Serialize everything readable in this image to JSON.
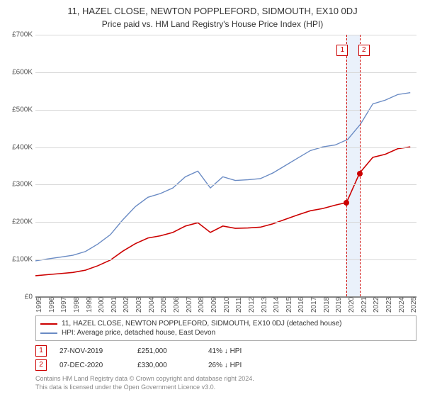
{
  "title": "11, HAZEL CLOSE, NEWTON POPPLEFORD, SIDMOUTH, EX10 0DJ",
  "subtitle": "Price paid vs. HM Land Registry's House Price Index (HPI)",
  "chart": {
    "background_color": "#ffffff",
    "grid_color": "#d8d8d8",
    "axis_color": "#888888",
    "text_color": "#555555",
    "y_min": 0,
    "y_max": 700000,
    "y_tick_step": 100000,
    "y_ticks": [
      "£0",
      "£100K",
      "£200K",
      "£300K",
      "£400K",
      "£500K",
      "£600K",
      "£700K"
    ],
    "x_min": 1995,
    "x_max": 2025.5,
    "x_ticks": [
      1995,
      1996,
      1997,
      1998,
      1999,
      2000,
      2001,
      2002,
      2003,
      2004,
      2005,
      2006,
      2007,
      2008,
      2009,
      2010,
      2011,
      2012,
      2013,
      2014,
      2015,
      2016,
      2017,
      2018,
      2019,
      2020,
      2021,
      2022,
      2023,
      2024,
      2025
    ],
    "highlight_band": {
      "x_start": 2019.9,
      "x_end": 2020.95,
      "fill": "#eaf1fb"
    },
    "dashed_lines": [
      {
        "x": 2019.9,
        "color": "#cc0000"
      },
      {
        "x": 2020.95,
        "color": "#cc0000"
      }
    ],
    "marker_label_y_offset": -24,
    "series": [
      {
        "id": "hpi",
        "label": "HPI: Average price, detached house, East Devon",
        "color": "#6a8bc4",
        "line_width": 1.4,
        "points": [
          [
            1995,
            95000
          ],
          [
            1996,
            100000
          ],
          [
            1997,
            105000
          ],
          [
            1998,
            110000
          ],
          [
            1999,
            120000
          ],
          [
            2000,
            140000
          ],
          [
            2001,
            165000
          ],
          [
            2002,
            205000
          ],
          [
            2003,
            240000
          ],
          [
            2004,
            265000
          ],
          [
            2005,
            275000
          ],
          [
            2006,
            290000
          ],
          [
            2007,
            320000
          ],
          [
            2008,
            335000
          ],
          [
            2009,
            290000
          ],
          [
            2010,
            320000
          ],
          [
            2011,
            310000
          ],
          [
            2012,
            312000
          ],
          [
            2013,
            315000
          ],
          [
            2014,
            330000
          ],
          [
            2015,
            350000
          ],
          [
            2016,
            370000
          ],
          [
            2017,
            390000
          ],
          [
            2018,
            400000
          ],
          [
            2019,
            405000
          ],
          [
            2020,
            420000
          ],
          [
            2021,
            460000
          ],
          [
            2022,
            515000
          ],
          [
            2023,
            525000
          ],
          [
            2024,
            540000
          ],
          [
            2025,
            545000
          ]
        ]
      },
      {
        "id": "property",
        "label": "11, HAZEL CLOSE, NEWTON POPPLEFORD, SIDMOUTH, EX10 0DJ (detached house)",
        "color": "#cc0000",
        "line_width": 1.6,
        "points": [
          [
            1995,
            55000
          ],
          [
            1996,
            58000
          ],
          [
            1997,
            61000
          ],
          [
            1998,
            64000
          ],
          [
            1999,
            70000
          ],
          [
            2000,
            82000
          ],
          [
            2001,
            97000
          ],
          [
            2002,
            121000
          ],
          [
            2003,
            141000
          ],
          [
            2004,
            156000
          ],
          [
            2005,
            162000
          ],
          [
            2006,
            171000
          ],
          [
            2007,
            188000
          ],
          [
            2008,
            197000
          ],
          [
            2009,
            171000
          ],
          [
            2010,
            188000
          ],
          [
            2011,
            182000
          ],
          [
            2012,
            183000
          ],
          [
            2013,
            185000
          ],
          [
            2014,
            194000
          ],
          [
            2015,
            206000
          ],
          [
            2016,
            218000
          ],
          [
            2017,
            229000
          ],
          [
            2018,
            235000
          ],
          [
            2019,
            244000
          ],
          [
            2019.9,
            251000
          ],
          [
            2020.95,
            330000
          ],
          [
            2021,
            332000
          ],
          [
            2022,
            372000
          ],
          [
            2023,
            380000
          ],
          [
            2024,
            395000
          ],
          [
            2025,
            400000
          ]
        ]
      }
    ],
    "markers": [
      {
        "id": "1",
        "x": 2019.9,
        "y": 251000
      },
      {
        "id": "2",
        "x": 2020.95,
        "y": 330000
      }
    ]
  },
  "legend": [
    {
      "color": "#cc0000",
      "label": "11, HAZEL CLOSE, NEWTON POPPLEFORD, SIDMOUTH, EX10 0DJ (detached house)"
    },
    {
      "color": "#6a8bc4",
      "label": "HPI: Average price, detached house, East Devon"
    }
  ],
  "sales": [
    {
      "badge": "1",
      "date": "27-NOV-2019",
      "price": "£251,000",
      "delta": "41% ↓ HPI"
    },
    {
      "badge": "2",
      "date": "07-DEC-2020",
      "price": "£330,000",
      "delta": "26% ↓ HPI"
    }
  ],
  "footer": {
    "line1": "Contains HM Land Registry data © Crown copyright and database right 2024.",
    "line2": "This data is licensed under the Open Government Licence v3.0."
  }
}
